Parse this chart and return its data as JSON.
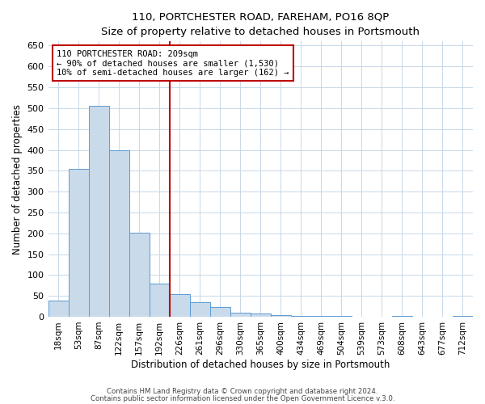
{
  "title1": "110, PORTCHESTER ROAD, FAREHAM, PO16 8QP",
  "title2": "Size of property relative to detached houses in Portsmouth",
  "xlabel": "Distribution of detached houses by size in Portsmouth",
  "ylabel": "Number of detached properties",
  "bar_labels": [
    "18sqm",
    "53sqm",
    "87sqm",
    "122sqm",
    "157sqm",
    "192sqm",
    "226sqm",
    "261sqm",
    "296sqm",
    "330sqm",
    "365sqm",
    "400sqm",
    "434sqm",
    "469sqm",
    "504sqm",
    "539sqm",
    "573sqm",
    "608sqm",
    "643sqm",
    "677sqm",
    "712sqm"
  ],
  "bar_heights": [
    38,
    355,
    505,
    400,
    202,
    80,
    55,
    35,
    24,
    10,
    8,
    3,
    2,
    1,
    1,
    0,
    0,
    2,
    0,
    0,
    2
  ],
  "bar_color": "#c9daea",
  "bar_edge_color": "#5b9bd5",
  "ylim": [
    0,
    660
  ],
  "yticks": [
    0,
    50,
    100,
    150,
    200,
    250,
    300,
    350,
    400,
    450,
    500,
    550,
    600,
    650
  ],
  "vline_pos": 5.5,
  "annotation_title": "110 PORTCHESTER ROAD: 209sqm",
  "annotation_line1": "← 90% of detached houses are smaller (1,530)",
  "annotation_line2": "10% of semi-detached houses are larger (162) →",
  "annotation_box_color": "#ffffff",
  "annotation_box_edge": "#c00000",
  "footer1": "Contains HM Land Registry data © Crown copyright and database right 2024.",
  "footer2": "Contains public sector information licensed under the Open Government Licence v.3.0.",
  "background_color": "#ffffff",
  "grid_color": "#c8d8e8"
}
